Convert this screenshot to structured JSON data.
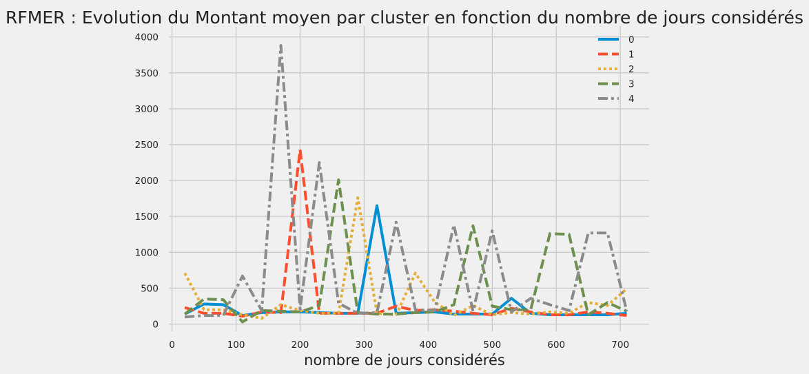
{
  "chart_data": {
    "type": "line",
    "title": "RFMER : Evolution du Montant moyen par cluster en fonction du nombre de jours considérés",
    "xlabel": "nombre de jours considérés",
    "ylabel": "",
    "xlim": [
      -5,
      745
    ],
    "ylim": [
      -100,
      4150
    ],
    "xticks": [
      0,
      100,
      200,
      300,
      400,
      500,
      600,
      700
    ],
    "yticks": [
      0,
      500,
      1000,
      1500,
      2000,
      2500,
      3000,
      3500,
      4000
    ],
    "grid": true,
    "legend_position": "top-right",
    "x": [
      20,
      50,
      80,
      110,
      140,
      170,
      200,
      230,
      260,
      290,
      320,
      350,
      380,
      410,
      440,
      470,
      500,
      530,
      560,
      590,
      620,
      650,
      680,
      710
    ],
    "series": [
      {
        "name": "0",
        "color": "#008fd5",
        "dash": "solid",
        "values": [
          140,
          280,
          270,
          120,
          160,
          170,
          170,
          160,
          150,
          150,
          1650,
          150,
          160,
          170,
          140,
          140,
          140,
          360,
          150,
          130,
          130,
          130,
          130,
          150
        ]
      },
      {
        "name": "1",
        "color": "#fc4f30",
        "dash": "dashed",
        "values": [
          230,
          150,
          150,
          110,
          170,
          160,
          2430,
          150,
          150,
          150,
          150,
          250,
          190,
          200,
          180,
          150,
          130,
          220,
          170,
          130,
          130,
          170,
          150,
          120
        ]
      },
      {
        "name": "2",
        "color": "#e5ae38",
        "dash": "dotted",
        "values": [
          710,
          200,
          200,
          130,
          80,
          270,
          190,
          150,
          150,
          1760,
          150,
          130,
          710,
          310,
          120,
          260,
          130,
          160,
          140,
          170,
          150,
          300,
          260,
          490
        ]
      },
      {
        "name": "3",
        "color": "#6d904f",
        "dash": "dashed",
        "values": [
          140,
          350,
          340,
          30,
          190,
          180,
          170,
          260,
          2010,
          160,
          140,
          140,
          160,
          170,
          270,
          1370,
          250,
          200,
          200,
          1260,
          1250,
          130,
          300,
          180
        ]
      },
      {
        "name": "4",
        "color": "#8b8b8b",
        "dash": "dashdot",
        "values": [
          100,
          120,
          120,
          670,
          190,
          3880,
          210,
          2250,
          290,
          150,
          160,
          1420,
          200,
          190,
          1380,
          180,
          1300,
          170,
          360,
          270,
          190,
          1270,
          1270,
          180
        ]
      }
    ]
  }
}
